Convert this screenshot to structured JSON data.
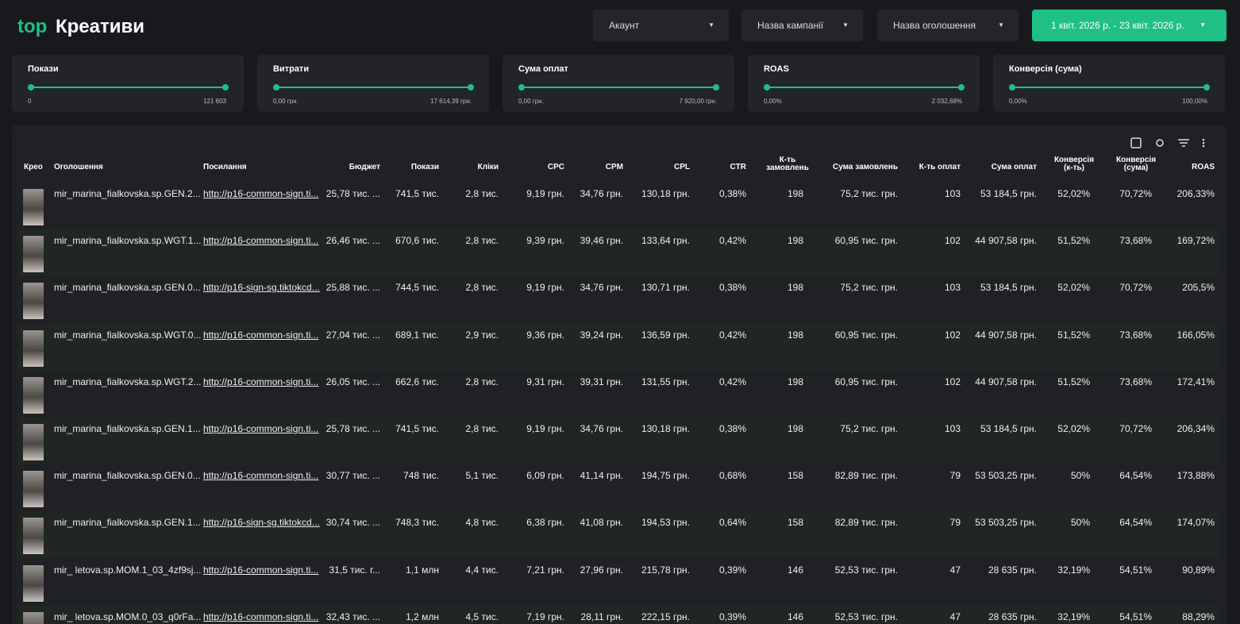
{
  "header": {
    "logo": "top",
    "title": "Креативи"
  },
  "filters": [
    "Акаунт",
    "Назва кампанії",
    "Назва оголошення",
    "1 квіт. 2026 р. - 23 квіт. 2026 р."
  ],
  "sliders": [
    {
      "label": "Покази",
      "min": "0",
      "max": "121 603"
    },
    {
      "label": "Витрати",
      "min": "0,00 грн.",
      "max": "17 614,39 грн."
    },
    {
      "label": "Сума оплат",
      "min": "0,00 грн.",
      "max": "7 920,00 грн."
    },
    {
      "label": "ROAS",
      "min": "0,00%",
      "max": "2 032,68%"
    },
    {
      "label": "Конверсія (сума)",
      "min": "0,00%",
      "max": "100,00%"
    }
  ],
  "table": {
    "columns": [
      "Крео",
      "Оголошення",
      "Посилання",
      "Бюджет",
      "Покази",
      "Кліки",
      "CPC",
      "CPM",
      "CPL",
      "CTR",
      "К-ть замовлень",
      "Сума замовлень",
      "К-ть оплат",
      "Сума оплат",
      "Конверсія (к-ть)",
      "Конверсія (сума)",
      "ROAS"
    ],
    "rows": [
      [
        "mir_marina_fialkovska.sp.GEN.2...",
        "http://p16-common-sign.ti...",
        "25,78 тис. ...",
        "741,5 тис.",
        "2,8 тис.",
        "9,19 грн.",
        "34,76 грн.",
        "130,18 грн.",
        "0,38%",
        "198",
        "75,2 тис. грн.",
        "103",
        "53 184,5 грн.",
        "52,02%",
        "70,72%",
        "206,33%"
      ],
      [
        "mir_marina_fialkovska.sp.WGT.1...",
        "http://p16-common-sign.ti...",
        "26,46 тис. ...",
        "670,6 тис.",
        "2,8 тис.",
        "9,39 грн.",
        "39,46 грн.",
        "133,64 грн.",
        "0,42%",
        "198",
        "60,95 тис. грн.",
        "102",
        "44 907,58 грн.",
        "51,52%",
        "73,68%",
        "169,72%"
      ],
      [
        "mir_marina_fialkovska.sp.GEN.0...",
        "http://p16-sign-sg.tiktokcd...",
        "25,88 тис. ...",
        "744,5 тис.",
        "2,8 тис.",
        "9,19 грн.",
        "34,76 грн.",
        "130,71 грн.",
        "0,38%",
        "198",
        "75,2 тис. грн.",
        "103",
        "53 184,5 грн.",
        "52,02%",
        "70,72%",
        "205,5%"
      ],
      [
        "mir_marina_fialkovska.sp.WGT.0...",
        "http://p16-common-sign.ti...",
        "27,04 тис. ...",
        "689,1 тис.",
        "2,9 тис.",
        "9,36 грн.",
        "39,24 грн.",
        "136,59 грн.",
        "0,42%",
        "198",
        "60,95 тис. грн.",
        "102",
        "44 907,58 грн.",
        "51,52%",
        "73,68%",
        "166,05%"
      ],
      [
        "mir_marina_fialkovska.sp.WGT.2...",
        "http://p16-common-sign.ti...",
        "26,05 тис. ...",
        "662,6 тис.",
        "2,8 тис.",
        "9,31 грн.",
        "39,31 грн.",
        "131,55 грн.",
        "0,42%",
        "198",
        "60,95 тис. грн.",
        "102",
        "44 907,58 грн.",
        "51,52%",
        "73,68%",
        "172,41%"
      ],
      [
        "mir_marina_fialkovska.sp.GEN.1...",
        "http://p16-common-sign.ti...",
        "25,78 тис. ...",
        "741,5 тис.",
        "2,8 тис.",
        "9,19 грн.",
        "34,76 грн.",
        "130,18 грн.",
        "0,38%",
        "198",
        "75,2 тис. грн.",
        "103",
        "53 184,5 грн.",
        "52,02%",
        "70,72%",
        "206,34%"
      ],
      [
        "mir_marina_fialkovska.sp.GEN.0...",
        "http://p16-common-sign.ti...",
        "30,77 тис. ...",
        "748 тис.",
        "5,1 тис.",
        "6,09 грн.",
        "41,14 грн.",
        "194,75 грн.",
        "0,68%",
        "158",
        "82,89 тис. грн.",
        "79",
        "53 503,25 грн.",
        "50%",
        "64,54%",
        "173,88%"
      ],
      [
        "mir_marina_fialkovska.sp.GEN.1...",
        "http://p16-sign-sg.tiktokcd...",
        "30,74 тис. ...",
        "748,3 тис.",
        "4,8 тис.",
        "6,38 грн.",
        "41,08 грн.",
        "194,53 грн.",
        "0,64%",
        "158",
        "82,89 тис. грн.",
        "79",
        "53 503,25 грн.",
        "50%",
        "64,54%",
        "174,07%"
      ],
      [
        "mir_ letova.sp.MOM.1_03_4zf9sj...",
        "http://p16-common-sign.ti...",
        "31,5 тис. г...",
        "1,1 млн",
        "4,4 тис.",
        "7,21 грн.",
        "27,96 грн.",
        "215,78 грн.",
        "0,39%",
        "146",
        "52,53 тис. грн.",
        "47",
        "28 635 грн.",
        "32,19%",
        "54,51%",
        "90,89%"
      ],
      [
        "mir_ letova.sp.MOM.0_03_q0rFa...",
        "http://p16-common-sign.ti...",
        "32,43 тис. ...",
        "1,2 млн",
        "4,5 тис.",
        "7,19 грн.",
        "28,11 грн.",
        "222,15 грн.",
        "0,39%",
        "146",
        "52,53 тис. грн.",
        "47",
        "28 635 грн.",
        "32,19%",
        "54,51%",
        "88,29%"
      ]
    ]
  }
}
